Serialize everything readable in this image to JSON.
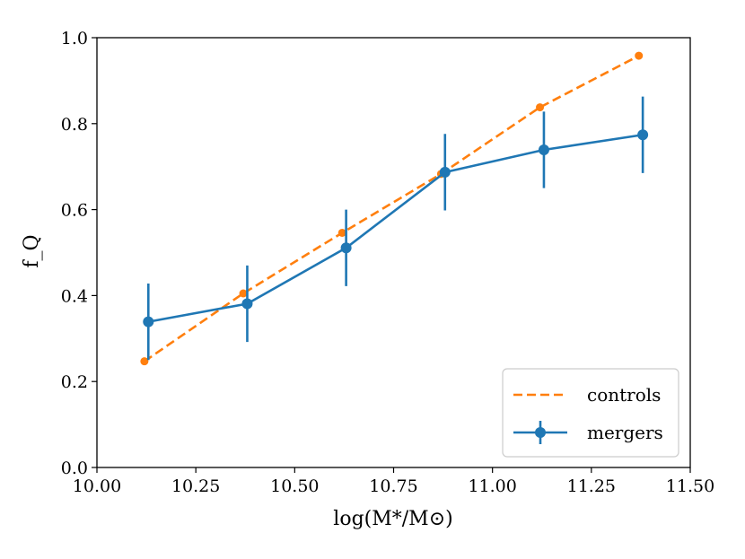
{
  "chart_data": {
    "type": "line",
    "xlabel": "log(M*/M⊙)",
    "ylabel": "f_Q",
    "xlim": [
      10.0,
      11.5
    ],
    "ylim": [
      0.0,
      1.0
    ],
    "xticks": [
      10.0,
      10.25,
      10.5,
      10.75,
      11.0,
      11.25,
      11.5
    ],
    "xtick_labels": [
      "10.00",
      "10.25",
      "10.50",
      "10.75",
      "11.00",
      "11.25",
      "11.50"
    ],
    "yticks": [
      0.0,
      0.2,
      0.4,
      0.6,
      0.8,
      1.0
    ],
    "ytick_labels": [
      "0.0",
      "0.2",
      "0.4",
      "0.6",
      "0.8",
      "1.0"
    ],
    "grid": false,
    "legend_position": "bottom-right",
    "series": [
      {
        "name": "controls",
        "style": "dashed",
        "color": "#ff7f0e",
        "x": [
          10.12,
          10.37,
          10.62,
          10.87,
          11.12,
          11.37
        ],
        "y": [
          0.247,
          0.405,
          0.546,
          0.683,
          0.838,
          0.958
        ]
      },
      {
        "name": "mergers",
        "style": "solid-errorbar",
        "color": "#1f77b4",
        "x": [
          10.13,
          10.38,
          10.63,
          10.88,
          11.13,
          11.38
        ],
        "y": [
          0.339,
          0.381,
          0.511,
          0.687,
          0.739,
          0.774
        ],
        "yerr": [
          0.089,
          0.089,
          0.089,
          0.089,
          0.089,
          0.089
        ]
      }
    ]
  }
}
